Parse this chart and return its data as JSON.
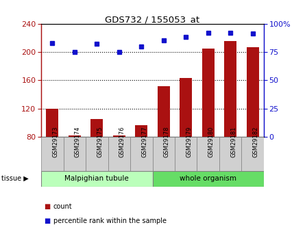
{
  "title": "GDS732 / 155053_at",
  "samples": [
    "GSM29173",
    "GSM29174",
    "GSM29175",
    "GSM29176",
    "GSM29177",
    "GSM29178",
    "GSM29179",
    "GSM29180",
    "GSM29181",
    "GSM29182"
  ],
  "count": [
    120,
    82,
    105,
    82,
    97,
    152,
    163,
    205,
    215,
    207
  ],
  "percentile": [
    83,
    75,
    82,
    75,
    80,
    85,
    88,
    92,
    92,
    91
  ],
  "bar_color": "#aa1111",
  "dot_color": "#1111cc",
  "left_ylim": [
    80,
    240
  ],
  "right_ylim": [
    0,
    100
  ],
  "left_yticks": [
    80,
    120,
    160,
    200,
    240
  ],
  "right_yticks": [
    0,
    25,
    50,
    75,
    100
  ],
  "right_yticklabels": [
    "0",
    "25",
    "50",
    "75",
    "100%"
  ],
  "tissue_labels": [
    "Malpighian tubule",
    "whole organism"
  ],
  "tissue_color_left": "#bbffbb",
  "tissue_color_right": "#66dd66",
  "grid_lines": [
    120,
    160,
    200
  ],
  "sample_box_color": "#d0d0d0",
  "plot_bg": "#ffffff"
}
